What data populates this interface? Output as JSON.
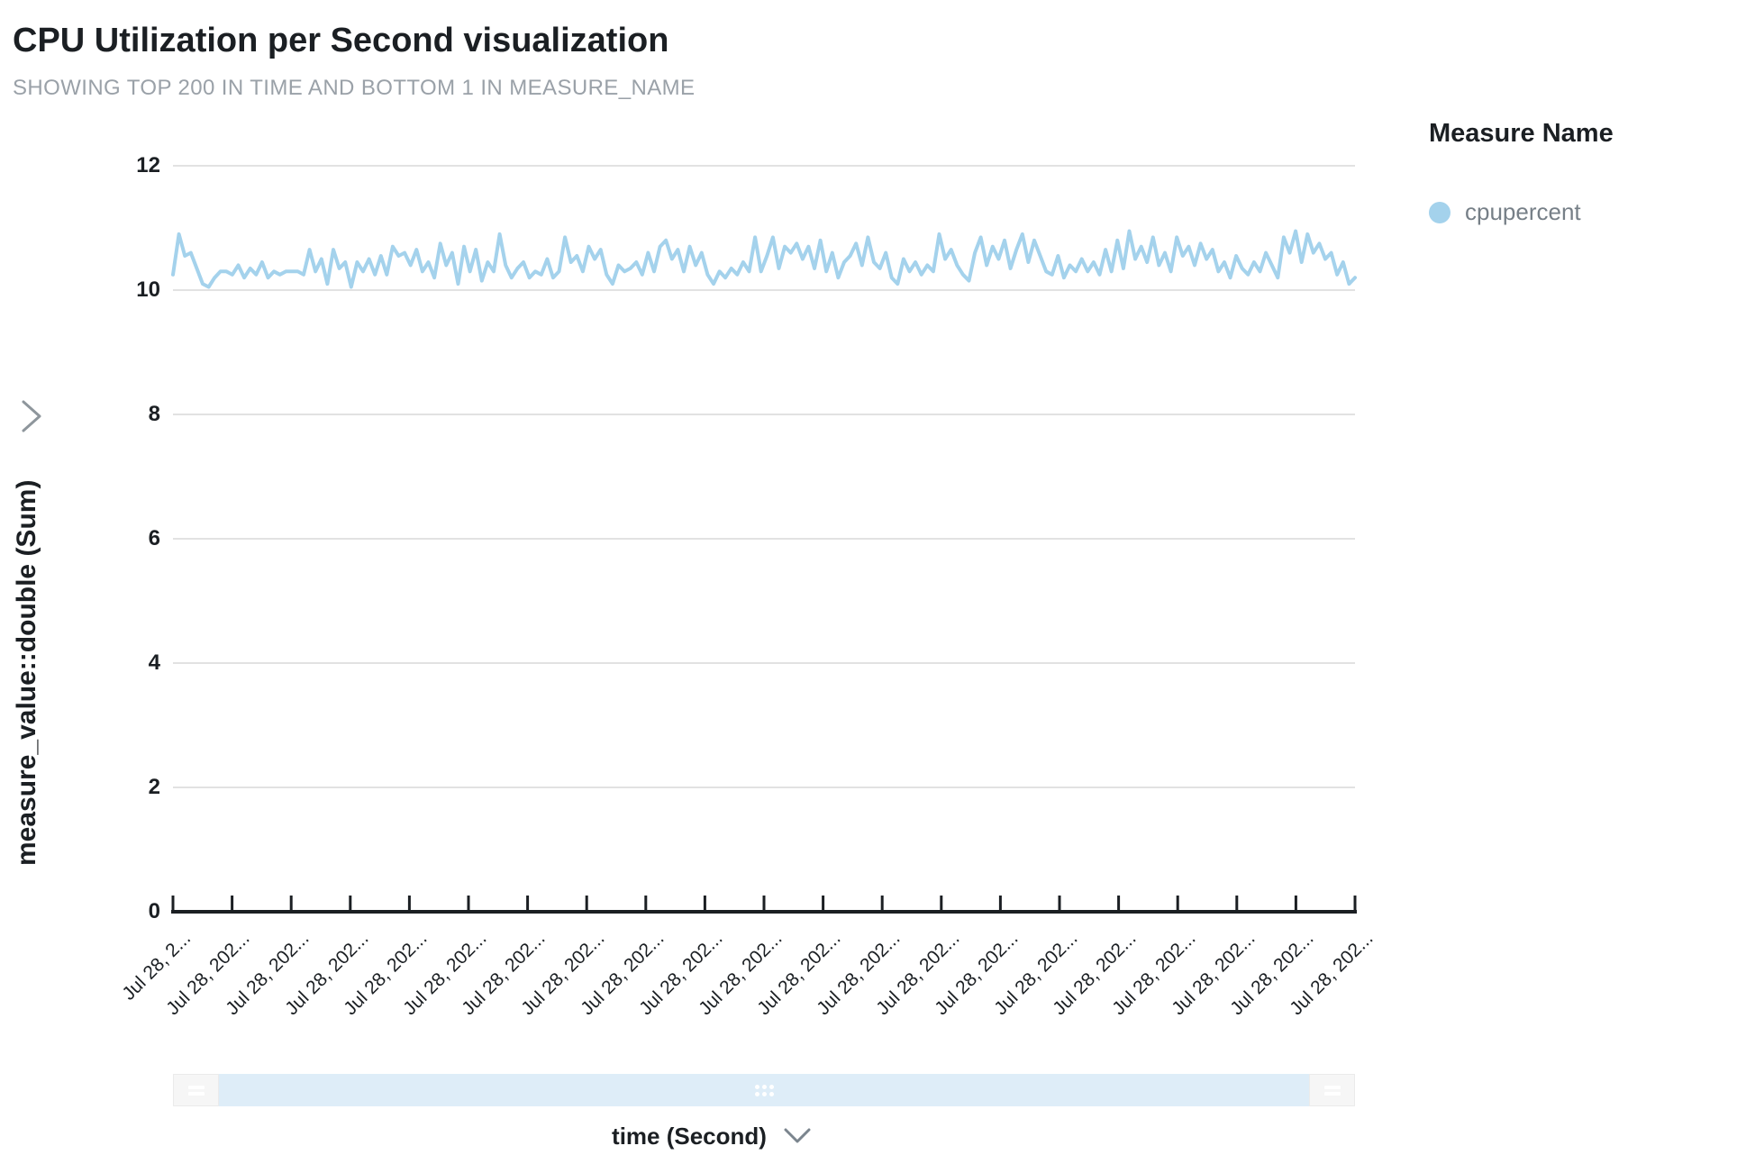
{
  "header": {
    "title": "CPU Utilization per Second visualization",
    "subtitle": "SHOWING TOP 200 IN TIME AND BOTTOM 1 IN MEASURE_NAME"
  },
  "legend": {
    "title": "Measure Name",
    "items": [
      {
        "label": "cpupercent",
        "color": "#A4D2EC"
      }
    ]
  },
  "y_axis": {
    "title": "measure_value::double (Sum)"
  },
  "x_axis": {
    "title": "time (Second)"
  },
  "colors": {
    "line": "#A4D2EC",
    "grid": "#E2E2E2",
    "axis": "#1B1F23",
    "scrollbar_track": "#DEEDF8",
    "scrollbar_handle": "#F6F6F6",
    "muted_text": "#9AA1A8"
  },
  "chart_data": {
    "type": "line",
    "title": "CPU Utilization per Second visualization",
    "xlabel": "time (Second)",
    "ylabel": "measure_value::double (Sum)",
    "ylim": [
      0,
      12
    ],
    "y_ticks": [
      0,
      2,
      4,
      6,
      8,
      10,
      12
    ],
    "grid": true,
    "legend_position": "right",
    "x_tick_labels": [
      "Jul 28, 2...",
      "Jul 28, 202...",
      "Jul 28, 202...",
      "Jul 28, 202...",
      "Jul 28, 202...",
      "Jul 28, 202...",
      "Jul 28, 202...",
      "Jul 28, 202...",
      "Jul 28, 202...",
      "Jul 28, 202...",
      "Jul 28, 202...",
      "Jul 28, 202...",
      "Jul 28, 202...",
      "Jul 28, 202...",
      "Jul 28, 202...",
      "Jul 28, 202...",
      "Jul 28, 202...",
      "Jul 28, 202...",
      "Jul 28, 202...",
      "Jul 28, 202...",
      "Jul 28, 202..."
    ],
    "series": [
      {
        "name": "cpupercent",
        "color": "#A4D2EC",
        "values": [
          10.25,
          10.9,
          10.55,
          10.6,
          10.35,
          10.1,
          10.05,
          10.2,
          10.3,
          10.3,
          10.25,
          10.4,
          10.2,
          10.35,
          10.25,
          10.45,
          10.2,
          10.3,
          10.25,
          10.3,
          10.3,
          10.3,
          10.25,
          10.65,
          10.3,
          10.5,
          10.1,
          10.65,
          10.35,
          10.45,
          10.05,
          10.45,
          10.3,
          10.5,
          10.25,
          10.55,
          10.25,
          10.7,
          10.55,
          10.6,
          10.4,
          10.65,
          10.3,
          10.45,
          10.2,
          10.75,
          10.4,
          10.6,
          10.1,
          10.7,
          10.3,
          10.65,
          10.15,
          10.45,
          10.3,
          10.9,
          10.4,
          10.2,
          10.35,
          10.45,
          10.2,
          10.3,
          10.25,
          10.5,
          10.2,
          10.3,
          10.85,
          10.45,
          10.55,
          10.3,
          10.7,
          10.5,
          10.65,
          10.25,
          10.1,
          10.4,
          10.3,
          10.35,
          10.45,
          10.25,
          10.6,
          10.3,
          10.7,
          10.8,
          10.5,
          10.65,
          10.3,
          10.7,
          10.4,
          10.6,
          10.25,
          10.1,
          10.3,
          10.2,
          10.35,
          10.25,
          10.45,
          10.3,
          10.85,
          10.3,
          10.55,
          10.85,
          10.35,
          10.7,
          10.6,
          10.75,
          10.5,
          10.7,
          10.35,
          10.8,
          10.3,
          10.6,
          10.2,
          10.45,
          10.55,
          10.75,
          10.4,
          10.85,
          10.45,
          10.35,
          10.6,
          10.2,
          10.1,
          10.5,
          10.3,
          10.45,
          10.25,
          10.4,
          10.3,
          10.9,
          10.5,
          10.65,
          10.4,
          10.25,
          10.15,
          10.6,
          10.85,
          10.4,
          10.7,
          10.5,
          10.8,
          10.35,
          10.65,
          10.9,
          10.45,
          10.8,
          10.55,
          10.3,
          10.25,
          10.55,
          10.2,
          10.4,
          10.3,
          10.5,
          10.3,
          10.45,
          10.25,
          10.65,
          10.3,
          10.8,
          10.35,
          10.95,
          10.5,
          10.7,
          10.45,
          10.85,
          10.4,
          10.6,
          10.3,
          10.85,
          10.55,
          10.7,
          10.4,
          10.75,
          10.5,
          10.65,
          10.3,
          10.45,
          10.2,
          10.55,
          10.35,
          10.25,
          10.45,
          10.3,
          10.6,
          10.4,
          10.2,
          10.85,
          10.6,
          10.95,
          10.45,
          10.9,
          10.6,
          10.75,
          10.5,
          10.6,
          10.25,
          10.45,
          10.1,
          10.2
        ]
      }
    ]
  }
}
